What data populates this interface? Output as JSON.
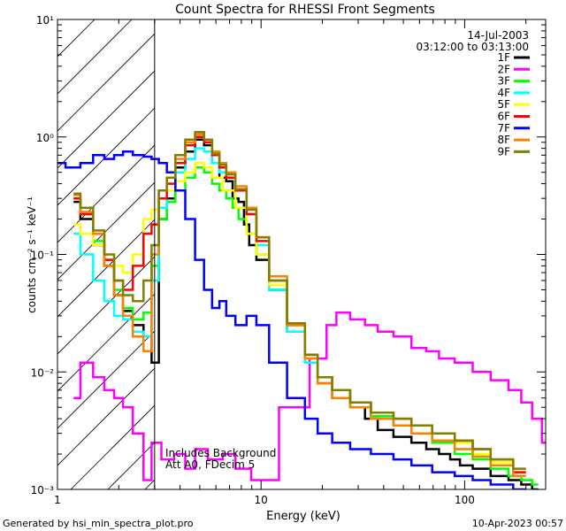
{
  "chart_data": {
    "type": "line",
    "title": "Count Spectra for RHESSI Front Segments",
    "xlabel": "Energy (keV)",
    "ylabel": "counts cm⁻² s⁻¹ keV⁻¹",
    "xscale": "log",
    "yscale": "log",
    "xlim": [
      1,
      250
    ],
    "ylim": [
      0.001,
      10
    ],
    "x_ticks": [
      {
        "value": 1,
        "label": "1"
      },
      {
        "value": 10,
        "label": "10"
      },
      {
        "value": 100,
        "label": "100"
      }
    ],
    "y_ticks": [
      {
        "value": 10,
        "label": "10¹"
      },
      {
        "value": 1,
        "label": "10⁰"
      },
      {
        "value": 0.1,
        "label": "10⁻¹"
      },
      {
        "value": 0.01,
        "label": "10⁻²"
      },
      {
        "value": 0.001,
        "label": "10⁻³"
      }
    ],
    "hatched_region_x": [
      1,
      3
    ],
    "date": "14-Jul-2003",
    "time_range": "03:12:00 to 03:13:00",
    "annotations": [
      "Includes Background",
      "Att A0, FDecim 5"
    ],
    "footer_left": "Generated by hsi_min_spectra_plot.pro",
    "footer_right": "10-Apr-2023 00:57",
    "series": [
      {
        "name": "1F",
        "color": "#000000",
        "x": [
          1.2,
          1.4,
          1.6,
          1.8,
          2.0,
          2.2,
          2.5,
          2.8,
          3.0,
          3.3,
          3.6,
          4.0,
          4.5,
          5.0,
          5.5,
          6.0,
          6.5,
          7.0,
          7.5,
          8.0,
          8.5,
          9.0,
          10,
          12,
          15,
          18,
          20,
          25,
          30,
          35,
          40,
          50,
          60,
          70,
          80,
          90,
          100,
          120,
          150,
          180,
          200,
          230
        ],
        "y": [
          0.28,
          0.2,
          0.12,
          0.08,
          0.045,
          0.033,
          0.025,
          0.02,
          0.012,
          0.2,
          0.3,
          0.55,
          0.75,
          0.95,
          0.85,
          0.6,
          0.45,
          0.42,
          0.3,
          0.28,
          0.18,
          0.12,
          0.09,
          0.05,
          0.022,
          0.012,
          0.008,
          0.006,
          0.005,
          0.004,
          0.0032,
          0.0028,
          0.0025,
          0.0022,
          0.002,
          0.0018,
          0.0016,
          0.0015,
          0.0013,
          0.0012,
          0.0011,
          0.001
        ]
      },
      {
        "name": "2F",
        "color": "#ff00ff",
        "x": [
          1.2,
          1.4,
          1.6,
          1.8,
          2.0,
          2.2,
          2.5,
          2.8,
          3.0,
          3.5,
          4.0,
          4.5,
          5.0,
          6.0,
          7.0,
          8.0,
          10,
          15,
          20,
          22,
          25,
          30,
          35,
          40,
          50,
          60,
          70,
          80,
          100,
          120,
          150,
          180,
          200,
          230,
          250
        ],
        "y": [
          0.006,
          0.012,
          0.009,
          0.007,
          0.006,
          0.005,
          0.003,
          0.0012,
          0.0025,
          0.0018,
          0.002,
          0.0015,
          0.0022,
          0.0018,
          0.002,
          0.0015,
          0.0012,
          0.005,
          0.013,
          0.025,
          0.032,
          0.028,
          0.025,
          0.022,
          0.02,
          0.016,
          0.015,
          0.013,
          0.012,
          0.01,
          0.0085,
          0.007,
          0.0055,
          0.004,
          0.0025
        ]
      },
      {
        "name": "3F",
        "color": "#00ff00",
        "x": [
          1.2,
          1.4,
          1.6,
          1.8,
          2.0,
          2.2,
          2.5,
          2.8,
          3.0,
          3.3,
          3.6,
          4.0,
          4.5,
          5.0,
          5.5,
          6.0,
          6.5,
          7.0,
          7.5,
          8.0,
          9.0,
          10,
          12,
          15,
          18,
          20,
          25,
          30,
          40,
          50,
          60,
          80,
          100,
          120,
          150,
          180,
          200,
          230
        ],
        "y": [
          0.3,
          0.22,
          0.13,
          0.09,
          0.05,
          0.035,
          0.028,
          0.032,
          0.08,
          0.2,
          0.28,
          0.35,
          0.45,
          0.55,
          0.5,
          0.4,
          0.35,
          0.3,
          0.25,
          0.2,
          0.15,
          0.1,
          0.05,
          0.025,
          0.014,
          0.009,
          0.007,
          0.005,
          0.0042,
          0.0035,
          0.003,
          0.0025,
          0.002,
          0.0018,
          0.0015,
          0.0013,
          0.0012,
          0.0011
        ]
      },
      {
        "name": "4F",
        "color": "#00ffff",
        "x": [
          1.2,
          1.4,
          1.6,
          1.8,
          2.0,
          2.2,
          2.5,
          2.8,
          3.0,
          3.3,
          3.6,
          4.0,
          4.5,
          5.0,
          5.5,
          6.0,
          6.5,
          7.0,
          8.0,
          9.0,
          10,
          12,
          15,
          18,
          20,
          25,
          30,
          40,
          50,
          60,
          80,
          100,
          120,
          150,
          200
        ],
        "y": [
          0.15,
          0.1,
          0.06,
          0.04,
          0.03,
          0.028,
          0.022,
          0.02,
          0.06,
          0.25,
          0.35,
          0.5,
          0.65,
          0.8,
          0.75,
          0.6,
          0.5,
          0.45,
          0.35,
          0.22,
          0.12,
          0.05,
          0.022,
          0.012,
          0.008,
          0.006,
          0.005,
          0.004,
          0.0035,
          0.003,
          0.0026,
          0.0022,
          0.0019,
          0.0016,
          0.0013
        ]
      },
      {
        "name": "5F",
        "color": "#ffff00",
        "x": [
          1.2,
          1.4,
          1.6,
          1.8,
          2.0,
          2.2,
          2.5,
          2.8,
          3.0,
          3.3,
          3.6,
          4.0,
          4.5,
          5.0,
          5.5,
          6.0,
          7.0,
          8.0,
          9.0,
          10,
          12,
          15,
          18,
          20,
          25,
          30,
          40,
          50,
          60,
          80,
          100,
          120,
          150,
          200
        ],
        "y": [
          0.18,
          0.15,
          0.12,
          0.1,
          0.08,
          0.07,
          0.1,
          0.2,
          0.24,
          0.3,
          0.35,
          0.42,
          0.5,
          0.6,
          0.55,
          0.45,
          0.35,
          0.25,
          0.15,
          0.1,
          0.055,
          0.025,
          0.013,
          0.009,
          0.007,
          0.0055,
          0.0045,
          0.004,
          0.0035,
          0.003,
          0.0025,
          0.002,
          0.0017,
          0.0014
        ]
      },
      {
        "name": "6F",
        "color": "#ff0000",
        "x": [
          1.2,
          1.4,
          1.6,
          1.8,
          2.0,
          2.2,
          2.5,
          2.8,
          3.0,
          3.3,
          3.6,
          4.0,
          4.5,
          5.0,
          5.5,
          6.0,
          6.5,
          7.0,
          8.0,
          9.0,
          10,
          12,
          15,
          18,
          20,
          25,
          30,
          40,
          50,
          60,
          80,
          100,
          120,
          150,
          200
        ],
        "y": [
          0.3,
          0.22,
          0.15,
          0.09,
          0.06,
          0.05,
          0.08,
          0.15,
          0.18,
          0.3,
          0.4,
          0.6,
          0.85,
          1.0,
          0.9,
          0.7,
          0.55,
          0.45,
          0.35,
          0.22,
          0.13,
          0.06,
          0.025,
          0.014,
          0.009,
          0.007,
          0.0055,
          0.0045,
          0.004,
          0.0035,
          0.003,
          0.0026,
          0.0022,
          0.0018,
          0.0014
        ]
      },
      {
        "name": "7F",
        "color": "#0000ff",
        "x": [
          1.0,
          1.2,
          1.4,
          1.6,
          1.8,
          2.0,
          2.2,
          2.5,
          2.8,
          3.0,
          3.3,
          3.6,
          4.0,
          4.5,
          5.0,
          5.5,
          6.0,
          6.5,
          7.0,
          8.0,
          9.0,
          10,
          12,
          15,
          18,
          20,
          25,
          30,
          40,
          50,
          60,
          80,
          100,
          120,
          150,
          200
        ],
        "y": [
          0.6,
          0.55,
          0.6,
          0.7,
          0.65,
          0.7,
          0.75,
          0.7,
          0.68,
          0.65,
          0.6,
          0.5,
          0.35,
          0.2,
          0.09,
          0.05,
          0.035,
          0.04,
          0.03,
          0.025,
          0.03,
          0.025,
          0.012,
          0.006,
          0.004,
          0.003,
          0.0025,
          0.0022,
          0.002,
          0.0018,
          0.0016,
          0.0014,
          0.0013,
          0.0012,
          0.0011,
          0.001
        ]
      },
      {
        "name": "8F",
        "color": "#ff8000",
        "x": [
          1.2,
          1.4,
          1.6,
          1.8,
          2.0,
          2.2,
          2.5,
          2.8,
          3.0,
          3.3,
          3.6,
          4.0,
          4.5,
          5.0,
          5.5,
          6.0,
          6.5,
          7.0,
          8.0,
          9.0,
          10,
          12,
          15,
          18,
          20,
          25,
          30,
          40,
          50,
          60,
          80,
          100,
          120,
          150,
          200
        ],
        "y": [
          0.32,
          0.23,
          0.15,
          0.08,
          0.045,
          0.03,
          0.02,
          0.015,
          0.1,
          0.35,
          0.45,
          0.65,
          0.9,
          1.05,
          0.95,
          0.75,
          0.6,
          0.5,
          0.38,
          0.25,
          0.14,
          0.065,
          0.025,
          0.013,
          0.008,
          0.006,
          0.005,
          0.004,
          0.0035,
          0.003,
          0.0026,
          0.0022,
          0.0019,
          0.0016,
          0.0013
        ]
      },
      {
        "name": "9F",
        "color": "#808000",
        "x": [
          1.2,
          1.4,
          1.6,
          1.8,
          2.0,
          2.2,
          2.5,
          2.8,
          3.0,
          3.3,
          3.6,
          4.0,
          4.5,
          5.0,
          5.5,
          6.0,
          6.5,
          7.0,
          8.0,
          9.0,
          10,
          12,
          15,
          18,
          20,
          25,
          30,
          40,
          50,
          60,
          80,
          100,
          120,
          150,
          200
        ],
        "y": [
          0.33,
          0.25,
          0.16,
          0.1,
          0.06,
          0.045,
          0.04,
          0.06,
          0.12,
          0.35,
          0.45,
          0.7,
          0.95,
          1.1,
          0.95,
          0.72,
          0.58,
          0.48,
          0.36,
          0.24,
          0.14,
          0.06,
          0.026,
          0.014,
          0.009,
          0.007,
          0.0055,
          0.0045,
          0.004,
          0.0035,
          0.003,
          0.0026,
          0.0022,
          0.0018,
          0.0015
        ]
      }
    ]
  }
}
